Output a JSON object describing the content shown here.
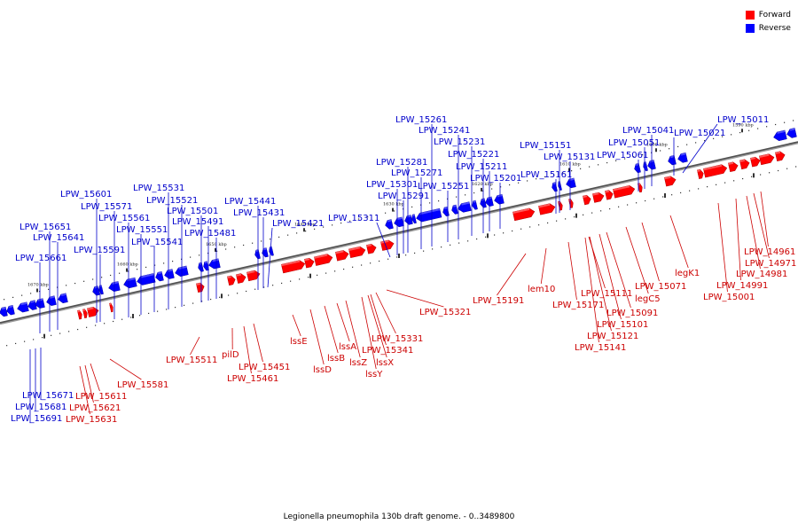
{
  "legend": {
    "forward_label": "Forward",
    "reverse_label": "Reverse",
    "forward_color": "#ff0000",
    "reverse_color": "#0000ff"
  },
  "caption": "Legionella pneumophila 130b draft genome. - 0..3489800",
  "scale_labels": [
    "1670 kbp",
    "1660 kbp",
    "1650 kbp",
    "1640 kbp",
    "1630 kbp",
    "1620 kbp",
    "1610 kbp",
    "1600 kbp",
    "1590 kbp"
  ],
  "reverse_labels": [
    "LPW_15011",
    "LPW_15021",
    "LPW_15041",
    "LPW_15051",
    "LPW_15061",
    "LPW_15131",
    "LPW_15151",
    "LPW_15161",
    "LPW_15201",
    "LPW_15211",
    "LPW_15221",
    "LPW_15231",
    "LPW_15241",
    "LPW_15251",
    "LPW_15261",
    "LPW_15271",
    "LPW_15281",
    "LPW_15291",
    "LPW_15301",
    "LPW_15311",
    "LPW_15421",
    "LPW_15431",
    "LPW_15441",
    "LPW_15481",
    "LPW_15491",
    "LPW_15501",
    "LPW_15521",
    "LPW_15531",
    "LPW_15541",
    "LPW_15551",
    "LPW_15561",
    "LPW_15571",
    "LPW_15591",
    "LPW_15601",
    "LPW_15641",
    "LPW_15651",
    "LPW_15661",
    "LPW_15671",
    "LPW_15681",
    "LPW_15691"
  ],
  "forward_labels": [
    "LPW_14961",
    "LPW_14971",
    "LPW_14981",
    "LPW_14991",
    "LPW_15001",
    "legK1",
    "LPW_15071",
    "legC5",
    "LPW_15091",
    "LPW_15101",
    "LPW_15111",
    "LPW_15121",
    "LPW_15141",
    "LPW_15171",
    "lem10",
    "LPW_15191",
    "LPW_15321",
    "LPW_15331",
    "LPW_15341",
    "lssX",
    "lssY",
    "lssZ",
    "lssA",
    "lssB",
    "lssD",
    "lssE",
    "LPW_15451",
    "LPW_15461",
    "pilD",
    "LPW_15511",
    "LPW_15581",
    "LPW_15611",
    "LPW_15621",
    "LPW_15631"
  ]
}
